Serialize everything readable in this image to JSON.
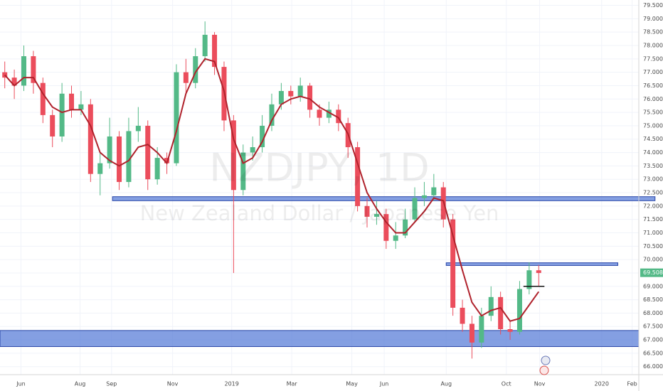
{
  "chart_data": {
    "type": "candlestick",
    "watermark": {
      "title": "NZDJPY, 1D",
      "subtitle": "New Zealand Dollar / Japanese Yen"
    },
    "up_color": "#53b987",
    "down_color": "#eb4d5c",
    "xlim": [
      0,
      670
    ],
    "ylim": [
      65.7,
      79.7
    ],
    "grid": true,
    "xticks": [
      {
        "value": 22,
        "label": "Jun"
      },
      {
        "value": 84,
        "label": "Aug"
      },
      {
        "value": 117,
        "label": "Sep"
      },
      {
        "value": 181,
        "label": "Nov"
      },
      {
        "value": 243,
        "label": "2019"
      },
      {
        "value": 306,
        "label": "Mar"
      },
      {
        "value": 369,
        "label": "May"
      },
      {
        "value": 403,
        "label": "Jun"
      },
      {
        "value": 468,
        "label": "Aug"
      },
      {
        "value": 531,
        "label": "Oct"
      },
      {
        "value": 566,
        "label": "Nov"
      },
      {
        "value": 631,
        "label": "2020"
      },
      {
        "value": 663,
        "label": "Feb"
      }
    ],
    "yticks": [
      {
        "value": 79.5,
        "label": "79.500"
      },
      {
        "value": 79,
        "label": "79.000"
      },
      {
        "value": 78.5,
        "label": "78.500"
      },
      {
        "value": 78,
        "label": "78.000"
      },
      {
        "value": 77.5,
        "label": "77.500"
      },
      {
        "value": 77,
        "label": "77.000"
      },
      {
        "value": 76.5,
        "label": "76.500"
      },
      {
        "value": 76,
        "label": "76.000"
      },
      {
        "value": 75.5,
        "label": "75.500"
      },
      {
        "value": 75,
        "label": "75.000"
      },
      {
        "value": 74.5,
        "label": "74.500"
      },
      {
        "value": 74,
        "label": "74.000"
      },
      {
        "value": 73.5,
        "label": "73.500"
      },
      {
        "value": 73,
        "label": "73.000"
      },
      {
        "value": 72.5,
        "label": "72.500"
      },
      {
        "value": 72,
        "label": "72.000"
      },
      {
        "value": 71.5,
        "label": "71.500"
      },
      {
        "value": 71,
        "label": "71.000"
      },
      {
        "value": 70.5,
        "label": "70.500"
      },
      {
        "value": 70,
        "label": "70.000"
      },
      {
        "value": 69.5,
        "label": "69.500"
      },
      {
        "value": 69,
        "label": "69.000"
      },
      {
        "value": 68.5,
        "label": "68.500"
      },
      {
        "value": 68,
        "label": "68.000"
      },
      {
        "value": 67.5,
        "label": "67.500"
      },
      {
        "value": 67,
        "label": "67.000"
      },
      {
        "value": 66.5,
        "label": "66.500"
      },
      {
        "value": 66,
        "label": "66.000"
      }
    ],
    "last_price": 69.508,
    "last_price_color": "#53b987",
    "candles": {
      "x": [
        5,
        15,
        25,
        35,
        45,
        55,
        65,
        75,
        85,
        95,
        105,
        115,
        125,
        135,
        145,
        155,
        165,
        175,
        185,
        195,
        205,
        215,
        225,
        235,
        245,
        255,
        265,
        275,
        285,
        295,
        305,
        315,
        325,
        335,
        345,
        355,
        365,
        375,
        385,
        395,
        405,
        415,
        425,
        435,
        445,
        455,
        465,
        475,
        485,
        495,
        505,
        515,
        525,
        535,
        545,
        555,
        565
      ],
      "open": [
        77.0,
        76.8,
        76.5,
        77.6,
        76.6,
        75.4,
        74.6,
        76.2,
        75.6,
        75.8,
        73.2,
        73.6,
        74.6,
        72.9,
        74.8,
        75.0,
        73.0,
        73.8,
        73.6,
        77.0,
        76.6,
        77.6,
        78.4,
        77.2,
        75.2,
        72.6,
        74.0,
        74.2,
        75.0,
        75.8,
        76.3,
        76.1,
        76.5,
        75.6,
        75.3,
        75.6,
        75.1,
        74.2,
        72.0,
        71.6,
        71.7,
        70.7,
        70.9,
        71.5,
        72.3,
        72.4,
        72.7,
        71.5,
        68.2,
        67.6,
        66.9,
        67.9,
        68.6,
        67.4,
        67.3,
        68.9,
        69.6
      ],
      "high": [
        77.4,
        77.1,
        78.0,
        77.8,
        76.8,
        75.6,
        76.6,
        76.5,
        76.3,
        76.0,
        74.0,
        75.3,
        74.8,
        75.3,
        75.7,
        75.2,
        74.2,
        74.0,
        77.3,
        77.5,
        77.9,
        78.9,
        78.5,
        77.4,
        75.4,
        74.3,
        74.6,
        75.4,
        76.2,
        76.6,
        76.5,
        76.8,
        76.6,
        75.8,
        75.9,
        75.8,
        75.3,
        74.4,
        72.3,
        72.2,
        71.9,
        71.4,
        71.9,
        72.7,
        72.9,
        73.2,
        72.9,
        71.7,
        68.5,
        67.9,
        68.2,
        69.0,
        68.8,
        67.7,
        69.2,
        69.9,
        69.8
      ],
      "low": [
        76.4,
        76.0,
        76.3,
        76.2,
        75.1,
        74.2,
        74.4,
        75.3,
        75.4,
        72.9,
        72.4,
        73.4,
        72.6,
        72.7,
        74.4,
        72.6,
        72.8,
        73.2,
        73.5,
        76.2,
        76.4,
        77.4,
        76.9,
        74.8,
        69.5,
        72.4,
        73.7,
        74.0,
        74.8,
        75.6,
        75.8,
        75.9,
        75.3,
        75.0,
        75.1,
        74.8,
        73.8,
        71.8,
        71.2,
        71.3,
        70.4,
        70.4,
        70.8,
        71.4,
        72.0,
        72.2,
        71.2,
        67.9,
        67.3,
        66.3,
        66.7,
        67.7,
        67.2,
        67.0,
        67.2,
        68.7,
        69.0
      ],
      "close": [
        76.8,
        76.5,
        77.6,
        76.6,
        75.4,
        74.6,
        76.2,
        75.6,
        75.8,
        73.2,
        73.6,
        74.6,
        72.9,
        74.8,
        75.0,
        73.0,
        73.8,
        73.6,
        77.0,
        76.6,
        77.6,
        78.4,
        77.2,
        75.2,
        72.6,
        74.0,
        74.2,
        75.0,
        75.8,
        76.3,
        76.1,
        76.5,
        75.6,
        75.3,
        75.6,
        75.1,
        74.2,
        72.0,
        71.6,
        71.7,
        70.7,
        70.9,
        71.5,
        72.3,
        72.4,
        72.7,
        71.5,
        68.2,
        67.6,
        66.9,
        67.9,
        68.6,
        67.4,
        67.3,
        68.9,
        69.6,
        69.5
      ]
    },
    "ma": {
      "color": "#b0222c",
      "values": [
        76.9,
        76.5,
        76.8,
        76.8,
        76.2,
        75.7,
        75.5,
        75.6,
        75.6,
        75.0,
        74.0,
        73.7,
        73.5,
        73.7,
        74.2,
        74.3,
        74.0,
        73.6,
        74.8,
        76.2,
        77.0,
        77.5,
        77.4,
        76.3,
        74.5,
        73.6,
        73.8,
        74.4,
        75.2,
        75.8,
        76.0,
        76.1,
        76.0,
        75.7,
        75.5,
        75.3,
        74.7,
        73.6,
        72.5,
        71.9,
        71.4,
        71.0,
        71.0,
        71.4,
        71.8,
        72.3,
        72.2,
        70.9,
        69.6,
        68.4,
        67.9,
        68.1,
        68.2,
        67.7,
        67.8,
        68.3,
        68.8
      ]
    },
    "zones": [
      {
        "x": [
          118,
          687
        ],
        "y": [
          72.2,
          72.35
        ]
      },
      {
        "x": [
          468,
          648
        ],
        "y": [
          69.78,
          69.88
        ]
      },
      {
        "x": [
          0,
          670
        ],
        "y": [
          66.75,
          67.35
        ]
      }
    ],
    "zone_color": "#5b7fd8",
    "level_line": {
      "x": [
        549,
        571
      ],
      "y": 69.0
    }
  }
}
